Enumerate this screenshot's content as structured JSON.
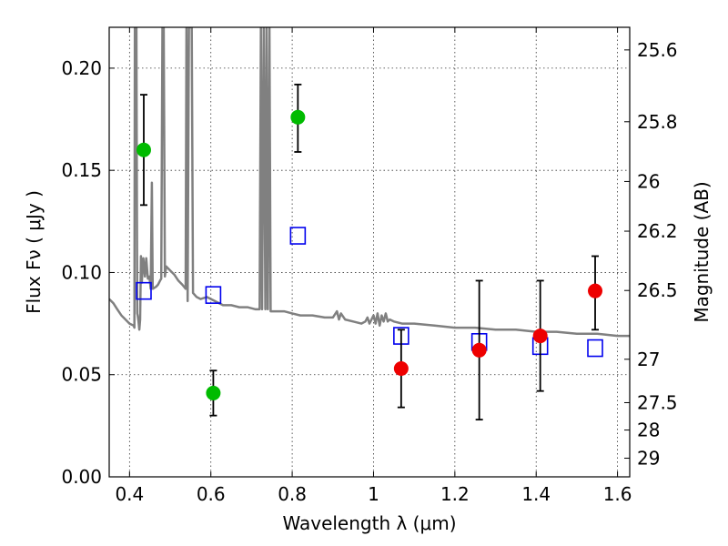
{
  "chart_data": {
    "type": "scatter",
    "xlabel": "Wavelength  λ (μm)",
    "ylabel": "Flux  Fν  ( μJy )",
    "y2label": "Magnitude (AB)",
    "xlim": [
      0.35,
      1.63
    ],
    "ylim": [
      0.0,
      0.22
    ],
    "grid": true,
    "x_ticks": [
      "0.4",
      "0.6",
      "0.8",
      "1",
      "1.2",
      "1.4",
      "1.6"
    ],
    "y_ticks": [
      "0.00",
      "0.05",
      "0.10",
      "0.15",
      "0.20"
    ],
    "mag_ticks": [
      "25.6",
      "25.8",
      "26",
      "26.2",
      "26.5",
      "27",
      "27.5",
      "28",
      "29"
    ],
    "series": [
      {
        "kind": "points",
        "color": "#00bb00",
        "points": [
          {
            "x": 0.435,
            "y": 0.16,
            "lo": 0.133,
            "hi": 0.187
          },
          {
            "x": 0.606,
            "y": 0.041,
            "lo": 0.03,
            "hi": 0.052
          },
          {
            "x": 0.814,
            "y": 0.176,
            "lo": 0.159,
            "hi": 0.192
          }
        ]
      },
      {
        "kind": "points",
        "color": "#ee0000",
        "points": [
          {
            "x": 1.068,
            "y": 0.053,
            "lo": 0.034,
            "hi": 0.072
          },
          {
            "x": 1.26,
            "y": 0.062,
            "lo": 0.028,
            "hi": 0.096
          },
          {
            "x": 1.41,
            "y": 0.069,
            "lo": 0.042,
            "hi": 0.096
          },
          {
            "x": 1.545,
            "y": 0.091,
            "lo": 0.072,
            "hi": 0.108
          }
        ]
      },
      {
        "kind": "squares",
        "color": "#0000ee",
        "points": [
          {
            "x": 0.435,
            "y": 0.091
          },
          {
            "x": 0.606,
            "y": 0.089
          },
          {
            "x": 0.814,
            "y": 0.118
          },
          {
            "x": 1.068,
            "y": 0.069
          },
          {
            "x": 1.26,
            "y": 0.066
          },
          {
            "x": 1.41,
            "y": 0.064
          },
          {
            "x": 1.545,
            "y": 0.063
          }
        ]
      },
      {
        "kind": "spectrum",
        "color": "#808080",
        "points": [
          [
            0.35,
            0.087
          ],
          [
            0.36,
            0.085
          ],
          [
            0.37,
            0.082
          ],
          [
            0.38,
            0.079
          ],
          [
            0.39,
            0.077
          ],
          [
            0.4,
            0.075
          ],
          [
            0.41,
            0.074
          ],
          [
            0.412,
            0.073
          ],
          [
            0.413,
            0.22
          ],
          [
            0.417,
            0.22
          ],
          [
            0.419,
            0.08
          ],
          [
            0.42,
            0.079
          ],
          [
            0.422,
            0.076
          ],
          [
            0.424,
            0.072
          ],
          [
            0.426,
            0.077
          ],
          [
            0.428,
            0.108
          ],
          [
            0.43,
            0.095
          ],
          [
            0.434,
            0.107
          ],
          [
            0.438,
            0.098
          ],
          [
            0.441,
            0.107
          ],
          [
            0.445,
            0.097
          ],
          [
            0.449,
            0.098
          ],
          [
            0.452,
            0.092
          ],
          [
            0.455,
            0.144
          ],
          [
            0.457,
            0.092
          ],
          [
            0.465,
            0.093
          ],
          [
            0.47,
            0.094
          ],
          [
            0.475,
            0.096
          ],
          [
            0.478,
            0.097
          ],
          [
            0.481,
            0.22
          ],
          [
            0.484,
            0.22
          ],
          [
            0.487,
            0.098
          ],
          [
            0.49,
            0.103
          ],
          [
            0.5,
            0.101
          ],
          [
            0.51,
            0.099
          ],
          [
            0.52,
            0.096
          ],
          [
            0.53,
            0.094
          ],
          [
            0.538,
            0.092
          ],
          [
            0.54,
            0.22
          ],
          [
            0.543,
            0.086
          ],
          [
            0.546,
            0.22
          ],
          [
            0.549,
            0.22
          ],
          [
            0.551,
            0.22
          ],
          [
            0.553,
            0.22
          ],
          [
            0.556,
            0.09
          ],
          [
            0.565,
            0.088
          ],
          [
            0.575,
            0.087
          ],
          [
            0.59,
            0.088
          ],
          [
            0.61,
            0.086
          ],
          [
            0.63,
            0.084
          ],
          [
            0.65,
            0.084
          ],
          [
            0.67,
            0.083
          ],
          [
            0.69,
            0.083
          ],
          [
            0.71,
            0.082
          ],
          [
            0.72,
            0.082
          ],
          [
            0.723,
            0.22
          ],
          [
            0.726,
            0.082
          ],
          [
            0.73,
            0.22
          ],
          [
            0.734,
            0.082
          ],
          [
            0.737,
            0.22
          ],
          [
            0.74,
            0.082
          ],
          [
            0.744,
            0.22
          ],
          [
            0.747,
            0.081
          ],
          [
            0.76,
            0.081
          ],
          [
            0.78,
            0.081
          ],
          [
            0.8,
            0.08
          ],
          [
            0.82,
            0.079
          ],
          [
            0.85,
            0.079
          ],
          [
            0.88,
            0.078
          ],
          [
            0.9,
            0.078
          ],
          [
            0.91,
            0.081
          ],
          [
            0.915,
            0.077
          ],
          [
            0.92,
            0.08
          ],
          [
            0.93,
            0.077
          ],
          [
            0.95,
            0.076
          ],
          [
            0.97,
            0.075
          ],
          [
            0.98,
            0.076
          ],
          [
            0.985,
            0.078
          ],
          [
            0.99,
            0.075
          ],
          [
            1.0,
            0.079
          ],
          [
            1.005,
            0.075
          ],
          [
            1.01,
            0.08
          ],
          [
            1.015,
            0.074
          ],
          [
            1.02,
            0.079
          ],
          [
            1.025,
            0.076
          ],
          [
            1.03,
            0.08
          ],
          [
            1.035,
            0.076
          ],
          [
            1.04,
            0.077
          ],
          [
            1.05,
            0.076
          ],
          [
            1.07,
            0.075
          ],
          [
            1.1,
            0.075
          ],
          [
            1.15,
            0.074
          ],
          [
            1.2,
            0.073
          ],
          [
            1.25,
            0.073
          ],
          [
            1.3,
            0.072
          ],
          [
            1.35,
            0.072
          ],
          [
            1.4,
            0.071
          ],
          [
            1.45,
            0.071
          ],
          [
            1.5,
            0.07
          ],
          [
            1.55,
            0.07
          ],
          [
            1.6,
            0.069
          ],
          [
            1.63,
            0.069
          ]
        ]
      }
    ]
  }
}
